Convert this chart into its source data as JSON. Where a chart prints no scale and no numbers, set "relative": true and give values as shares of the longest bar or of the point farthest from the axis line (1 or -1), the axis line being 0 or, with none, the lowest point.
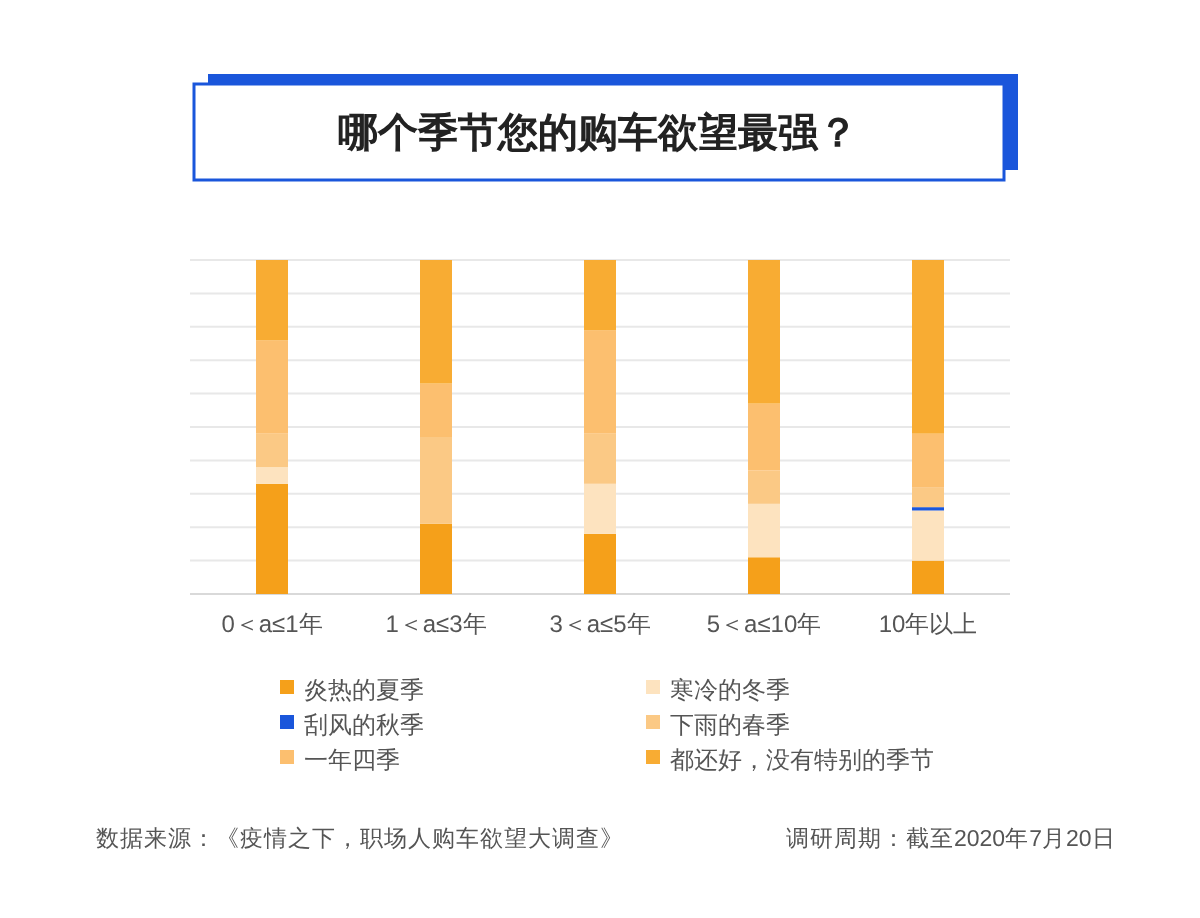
{
  "chart_data": {
    "type": "bar",
    "stacked": true,
    "relative": true,
    "grid": "y",
    "legend": "bottom",
    "title": "哪个季节您的购车欲望最强？",
    "categories": [
      "0＜a≤1年",
      "1＜a≤3年",
      "3＜a≤5年",
      "5＜a≤10年",
      "10年以上"
    ],
    "series": [
      {
        "name": "炎热的夏季",
        "color": "#f5a01a",
        "values": [
          0.33,
          0.21,
          0.18,
          0.11,
          0.1
        ]
      },
      {
        "name": "寒冷的冬季",
        "color": "#fde3bf",
        "values": [
          0.05,
          0,
          0.15,
          0.16,
          0.15
        ]
      },
      {
        "name": "刮风的秋季",
        "color": "#1a56db",
        "values": [
          0,
          0,
          0,
          0,
          0.01
        ]
      },
      {
        "name": "下雨的春季",
        "color": "#fbc985",
        "values": [
          0.1,
          0.26,
          0.15,
          0.1,
          0.06
        ]
      },
      {
        "name": "一年四季",
        "color": "#fcbf6f",
        "values": [
          0.28,
          0.16,
          0.31,
          0.2,
          0.16
        ]
      },
      {
        "name": "都还好，没有特别的季节",
        "color": "#f8ac33",
        "values": [
          0.24,
          0.37,
          0.21,
          0.43,
          0.52
        ]
      }
    ],
    "annotations": [
      "数据来源：《疫情之下，职场人购车欲望大调查》",
      "调研周期：截至2020年7月20日"
    ]
  }
}
